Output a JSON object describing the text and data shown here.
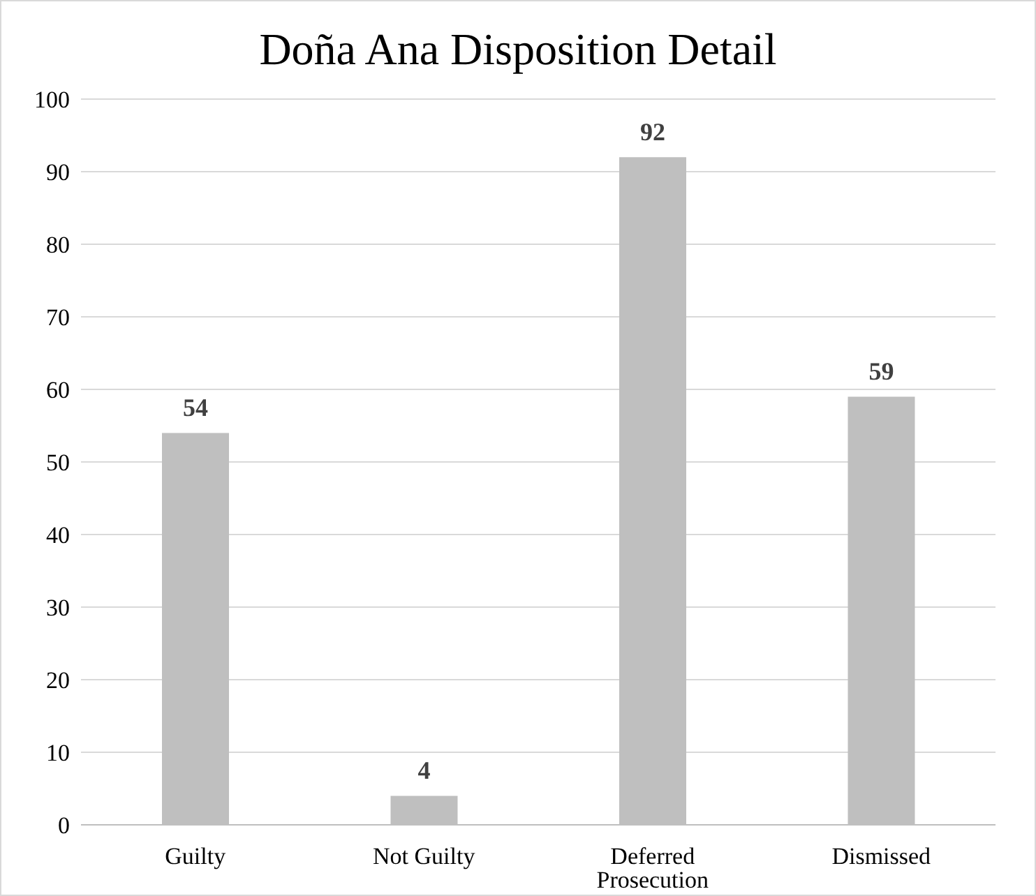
{
  "chart_data": {
    "type": "bar",
    "title": "Doña Ana Disposition Detail",
    "categories": [
      "Guilty",
      "Not Guilty",
      "Deferred Prosecution",
      "Dismissed"
    ],
    "values": [
      54,
      4,
      92,
      59
    ],
    "color": "#bfbfbf",
    "data_labels": true,
    "ylim": [
      0,
      100
    ],
    "yticks": [
      0,
      10,
      20,
      30,
      40,
      50,
      60,
      70,
      80,
      90,
      100
    ],
    "grid": "y",
    "legend": false
  }
}
